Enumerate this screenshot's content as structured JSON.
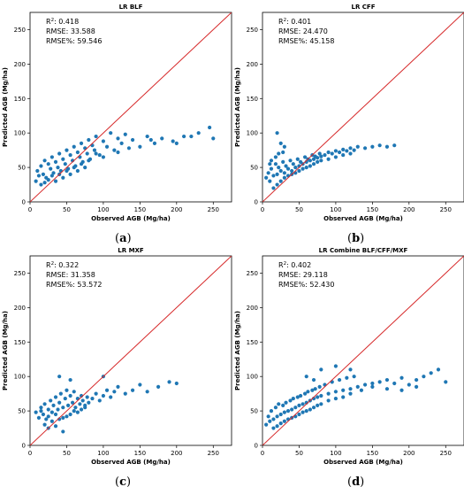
{
  "chart_data": [
    {
      "type": "scatter",
      "title": "LR  BLF",
      "xlabel": "Observed AGB (Mg/ha)",
      "ylabel": "Predicted AGB (Mg/ha)",
      "xlim": [
        0,
        275
      ],
      "ylim": [
        0,
        275
      ],
      "xticks": [
        0,
        50,
        100,
        150,
        200,
        250
      ],
      "yticks": [
        0,
        50,
        100,
        150,
        200,
        250
      ],
      "stats": {
        "r2_label": "R",
        "r2_sup": "2",
        "r2": ": 0.418",
        "rmse": "RMSE: 33.588",
        "rmse_pct": "RMSE%: 59.546"
      },
      "caption": "a",
      "reference_line": "1:1",
      "point_color": "#1f77b4",
      "line_color": "#d62728",
      "points": [
        [
          8,
          30
        ],
        [
          10,
          45
        ],
        [
          12,
          38
        ],
        [
          15,
          52
        ],
        [
          18,
          40
        ],
        [
          20,
          60
        ],
        [
          22,
          35
        ],
        [
          25,
          55
        ],
        [
          28,
          48
        ],
        [
          30,
          65
        ],
        [
          32,
          42
        ],
        [
          35,
          58
        ],
        [
          38,
          50
        ],
        [
          40,
          70
        ],
        [
          42,
          45
        ],
        [
          45,
          62
        ],
        [
          48,
          55
        ],
        [
          50,
          75
        ],
        [
          52,
          48
        ],
        [
          55,
          68
        ],
        [
          58,
          60
        ],
        [
          60,
          80
        ],
        [
          62,
          52
        ],
        [
          65,
          72
        ],
        [
          68,
          65
        ],
        [
          70,
          85
        ],
        [
          72,
          58
        ],
        [
          75,
          78
        ],
        [
          78,
          70
        ],
        [
          80,
          90
        ],
        [
          82,
          62
        ],
        [
          85,
          82
        ],
        [
          88,
          75
        ],
        [
          90,
          95
        ],
        [
          95,
          68
        ],
        [
          100,
          88
        ],
        [
          105,
          80
        ],
        [
          110,
          100
        ],
        [
          115,
          75
        ],
        [
          120,
          92
        ],
        [
          125,
          85
        ],
        [
          130,
          98
        ],
        [
          140,
          90
        ],
        [
          150,
          80
        ],
        [
          160,
          95
        ],
        [
          170,
          85
        ],
        [
          180,
          92
        ],
        [
          195,
          88
        ],
        [
          210,
          95
        ],
        [
          230,
          100
        ],
        [
          245,
          108
        ],
        [
          250,
          92
        ],
        [
          15,
          25
        ],
        [
          20,
          28
        ],
        [
          25,
          32
        ],
        [
          30,
          38
        ],
        [
          35,
          30
        ],
        [
          40,
          40
        ],
        [
          45,
          35
        ],
        [
          50,
          45
        ],
        [
          55,
          40
        ],
        [
          60,
          50
        ],
        [
          65,
          45
        ],
        [
          70,
          55
        ],
        [
          75,
          50
        ],
        [
          80,
          60
        ],
        [
          90,
          70
        ],
        [
          100,
          65
        ],
        [
          120,
          72
        ],
        [
          135,
          78
        ],
        [
          165,
          90
        ],
        [
          200,
          85
        ],
        [
          220,
          95
        ]
      ]
    },
    {
      "type": "scatter",
      "title": "LR  CFF",
      "xlabel": "Observed AGB (Mg/ha)",
      "ylabel": "Predicted AGB (Mg/ha)",
      "xlim": [
        0,
        275
      ],
      "ylim": [
        0,
        275
      ],
      "xticks": [
        0,
        50,
        100,
        150,
        200,
        250
      ],
      "yticks": [
        0,
        50,
        100,
        150,
        200,
        250
      ],
      "stats": {
        "r2_label": "R",
        "r2_sup": "2",
        "r2": ": 0.401",
        "rmse": "RMSE: 24.470",
        "rmse_pct": "RMSE%: 45.158"
      },
      "caption": "b",
      "reference_line": "1:1",
      "point_color": "#1f77b4",
      "line_color": "#d62728",
      "points": [
        [
          5,
          35
        ],
        [
          8,
          42
        ],
        [
          10,
          30
        ],
        [
          12,
          48
        ],
        [
          15,
          38
        ],
        [
          18,
          55
        ],
        [
          20,
          40
        ],
        [
          22,
          50
        ],
        [
          25,
          45
        ],
        [
          28,
          58
        ],
        [
          30,
          42
        ],
        [
          32,
          52
        ],
        [
          35,
          48
        ],
        [
          38,
          60
        ],
        [
          40,
          45
        ],
        [
          42,
          55
        ],
        [
          45,
          50
        ],
        [
          48,
          62
        ],
        [
          50,
          52
        ],
        [
          52,
          58
        ],
        [
          55,
          55
        ],
        [
          58,
          65
        ],
        [
          60,
          58
        ],
        [
          62,
          62
        ],
        [
          65,
          60
        ],
        [
          68,
          68
        ],
        [
          70,
          62
        ],
        [
          72,
          66
        ],
        [
          75,
          64
        ],
        [
          78,
          70
        ],
        [
          80,
          66
        ],
        [
          85,
          68
        ],
        [
          90,
          72
        ],
        [
          95,
          70
        ],
        [
          100,
          74
        ],
        [
          105,
          72
        ],
        [
          110,
          76
        ],
        [
          115,
          74
        ],
        [
          120,
          78
        ],
        [
          125,
          75
        ],
        [
          130,
          80
        ],
        [
          140,
          78
        ],
        [
          150,
          80
        ],
        [
          160,
          82
        ],
        [
          170,
          80
        ],
        [
          180,
          82
        ],
        [
          20,
          100
        ],
        [
          25,
          85
        ],
        [
          30,
          80
        ],
        [
          15,
          20
        ],
        [
          20,
          25
        ],
        [
          25,
          30
        ],
        [
          30,
          35
        ],
        [
          35,
          38
        ],
        [
          40,
          40
        ],
        [
          45,
          42
        ],
        [
          50,
          45
        ],
        [
          55,
          48
        ],
        [
          60,
          50
        ],
        [
          65,
          52
        ],
        [
          70,
          55
        ],
        [
          75,
          58
        ],
        [
          80,
          60
        ],
        [
          90,
          62
        ],
        [
          100,
          65
        ],
        [
          110,
          68
        ],
        [
          120,
          70
        ],
        [
          10,
          55
        ],
        [
          12,
          60
        ],
        [
          18,
          65
        ],
        [
          22,
          70
        ],
        [
          28,
          72
        ]
      ]
    },
    {
      "type": "scatter",
      "title": "LR  MXF",
      "xlabel": "Observed AGB (Mg/ha)",
      "ylabel": "Predicted AGB (Mg/ha)",
      "xlim": [
        0,
        275
      ],
      "ylim": [
        0,
        275
      ],
      "xticks": [
        0,
        50,
        100,
        150,
        200,
        250
      ],
      "yticks": [
        0,
        50,
        100,
        150,
        200,
        250
      ],
      "stats": {
        "r2_label": "R",
        "r2_sup": "2",
        "r2": ": 0.322",
        "rmse": "RMSE: 31.358",
        "rmse_pct": "RMSE%: 53.572"
      },
      "caption": "c",
      "reference_line": "1:1",
      "point_color": "#1f77b4",
      "line_color": "#d62728",
      "points": [
        [
          8,
          48
        ],
        [
          12,
          40
        ],
        [
          15,
          55
        ],
        [
          18,
          45
        ],
        [
          20,
          60
        ],
        [
          22,
          38
        ],
        [
          25,
          52
        ],
        [
          28,
          65
        ],
        [
          30,
          48
        ],
        [
          32,
          58
        ],
        [
          35,
          70
        ],
        [
          38,
          52
        ],
        [
          40,
          62
        ],
        [
          42,
          75
        ],
        [
          45,
          55
        ],
        [
          48,
          68
        ],
        [
          50,
          80
        ],
        [
          52,
          58
        ],
        [
          55,
          72
        ],
        [
          58,
          62
        ],
        [
          60,
          78
        ],
        [
          62,
          55
        ],
        [
          65,
          68
        ],
        [
          68,
          60
        ],
        [
          70,
          72
        ],
        [
          72,
          65
        ],
        [
          75,
          58
        ],
        [
          78,
          70
        ],
        [
          80,
          62
        ],
        [
          85,
          68
        ],
        [
          90,
          75
        ],
        [
          95,
          65
        ],
        [
          100,
          72
        ],
        [
          105,
          80
        ],
        [
          110,
          70
        ],
        [
          115,
          78
        ],
        [
          120,
          85
        ],
        [
          130,
          75
        ],
        [
          140,
          80
        ],
        [
          150,
          88
        ],
        [
          160,
          78
        ],
        [
          175,
          85
        ],
        [
          190,
          92
        ],
        [
          200,
          90
        ],
        [
          20,
          30
        ],
        [
          25,
          25
        ],
        [
          30,
          35
        ],
        [
          35,
          28
        ],
        [
          40,
          38
        ],
        [
          45,
          20
        ],
        [
          50,
          42
        ],
        [
          55,
          45
        ],
        [
          60,
          50
        ],
        [
          65,
          48
        ],
        [
          70,
          52
        ],
        [
          75,
          55
        ],
        [
          40,
          100
        ],
        [
          55,
          95
        ],
        [
          100,
          100
        ],
        [
          15,
          50
        ],
        [
          25,
          42
        ],
        [
          35,
          45
        ],
        [
          45,
          40
        ]
      ]
    },
    {
      "type": "scatter",
      "title": "LR  Combine BLF/CFF/MXF",
      "xlabel": "Observed AGB (Mg/ha)",
      "ylabel": "Predicted AGB (Mg/ha)",
      "xlim": [
        0,
        275
      ],
      "ylim": [
        0,
        275
      ],
      "xticks": [
        0,
        50,
        100,
        150,
        200,
        250
      ],
      "yticks": [
        0,
        50,
        100,
        150,
        200,
        250
      ],
      "stats": {
        "r2_label": "R",
        "r2_sup": "2",
        "r2": ": 0.402",
        "rmse": "RMSE: 29.118",
        "rmse_pct": "RMSE%: 52.430"
      },
      "caption": "d",
      "reference_line": "1:1",
      "point_color": "#1f77b4",
      "line_color": "#d62728",
      "points": [
        [
          5,
          30
        ],
        [
          8,
          42
        ],
        [
          10,
          35
        ],
        [
          12,
          50
        ],
        [
          15,
          38
        ],
        [
          18,
          55
        ],
        [
          20,
          42
        ],
        [
          22,
          60
        ],
        [
          25,
          45
        ],
        [
          28,
          58
        ],
        [
          30,
          48
        ],
        [
          32,
          62
        ],
        [
          35,
          50
        ],
        [
          38,
          65
        ],
        [
          40,
          52
        ],
        [
          42,
          68
        ],
        [
          45,
          55
        ],
        [
          48,
          70
        ],
        [
          50,
          58
        ],
        [
          52,
          72
        ],
        [
          55,
          60
        ],
        [
          58,
          75
        ],
        [
          60,
          62
        ],
        [
          62,
          78
        ],
        [
          65,
          65
        ],
        [
          68,
          80
        ],
        [
          70,
          68
        ],
        [
          72,
          82
        ],
        [
          75,
          70
        ],
        [
          78,
          85
        ],
        [
          80,
          72
        ],
        [
          85,
          88
        ],
        [
          90,
          75
        ],
        [
          95,
          92
        ],
        [
          100,
          78
        ],
        [
          105,
          95
        ],
        [
          110,
          80
        ],
        [
          115,
          98
        ],
        [
          120,
          82
        ],
        [
          125,
          100
        ],
        [
          130,
          85
        ],
        [
          140,
          88
        ],
        [
          150,
          90
        ],
        [
          160,
          92
        ],
        [
          170,
          95
        ],
        [
          180,
          90
        ],
        [
          190,
          98
        ],
        [
          200,
          88
        ],
        [
          210,
          95
        ],
        [
          220,
          100
        ],
        [
          230,
          105
        ],
        [
          240,
          110
        ],
        [
          250,
          92
        ],
        [
          15,
          25
        ],
        [
          20,
          28
        ],
        [
          25,
          32
        ],
        [
          30,
          35
        ],
        [
          35,
          38
        ],
        [
          40,
          40
        ],
        [
          45,
          42
        ],
        [
          50,
          45
        ],
        [
          55,
          48
        ],
        [
          60,
          50
        ],
        [
          65,
          52
        ],
        [
          70,
          55
        ],
        [
          75,
          58
        ],
        [
          80,
          60
        ],
        [
          90,
          65
        ],
        [
          100,
          68
        ],
        [
          110,
          70
        ],
        [
          120,
          75
        ],
        [
          135,
          80
        ],
        [
          150,
          85
        ],
        [
          170,
          82
        ],
        [
          190,
          80
        ],
        [
          210,
          85
        ],
        [
          60,
          100
        ],
        [
          70,
          95
        ],
        [
          80,
          110
        ],
        [
          100,
          115
        ],
        [
          120,
          110
        ]
      ]
    }
  ]
}
